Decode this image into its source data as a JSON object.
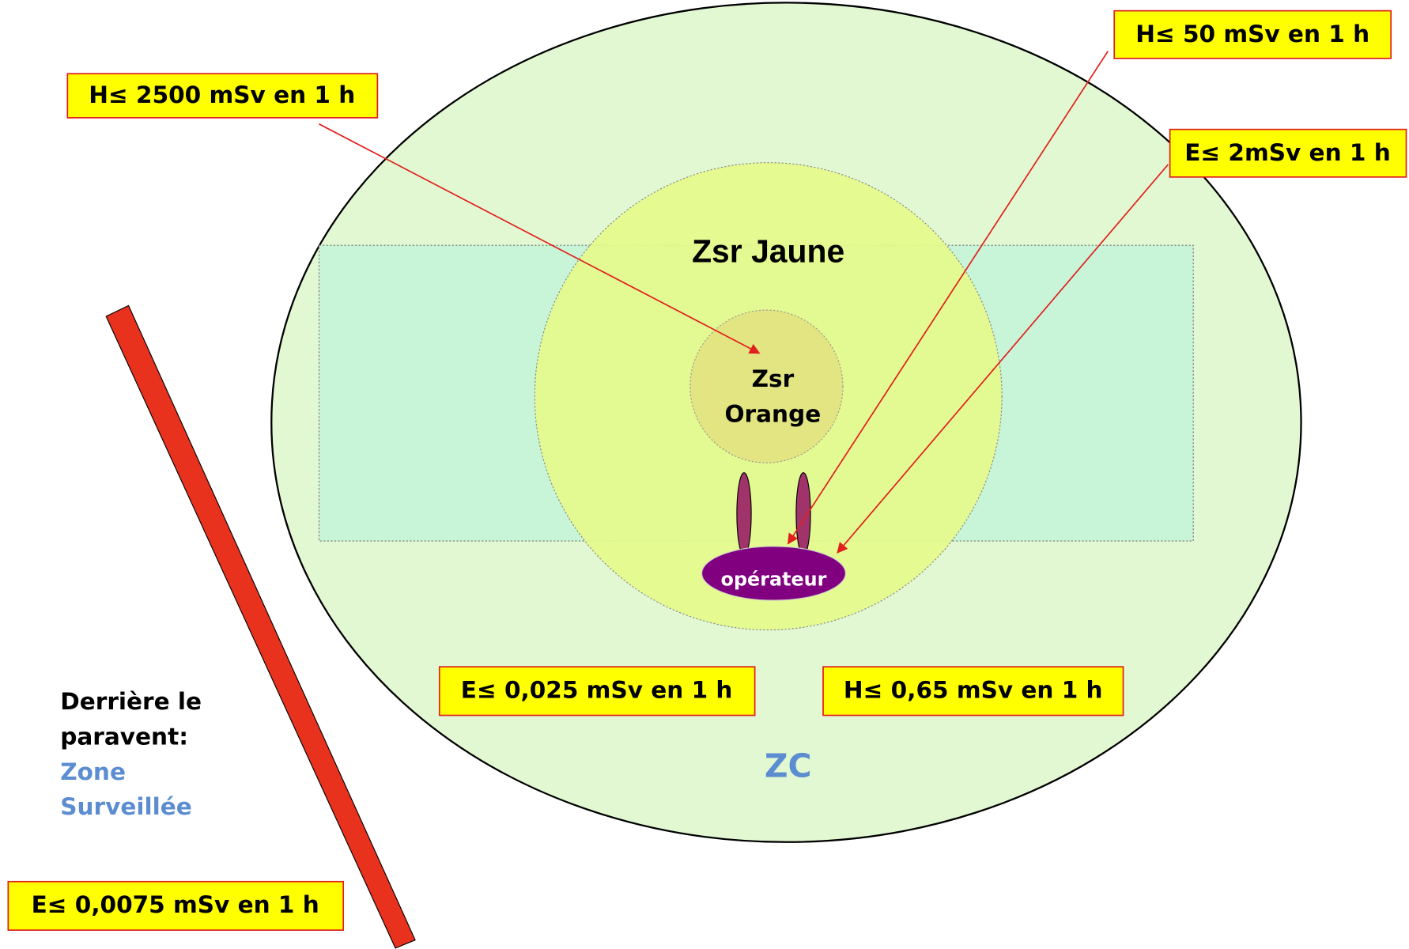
{
  "zones": {
    "outer": "ZC",
    "yellow": "Zsr Jaune",
    "orange": [
      "Zsr",
      "Orange"
    ],
    "operator": "opérateur"
  },
  "dose_labels": [
    "H≤ 2500 mSv en 1 h",
    "H≤ 50 mSv en 1 h",
    "E≤ 2mSv en 1 h",
    "E≤ 0,025 mSv en 1 h",
    "H≤ 0,65 mSv en 1 h",
    "E≤ 0,0075 mSv en 1 h"
  ],
  "screen_note": {
    "lines": [
      "Derrière le",
      "paravent:"
    ],
    "zone": [
      "Zone",
      "Surveillée"
    ]
  }
}
